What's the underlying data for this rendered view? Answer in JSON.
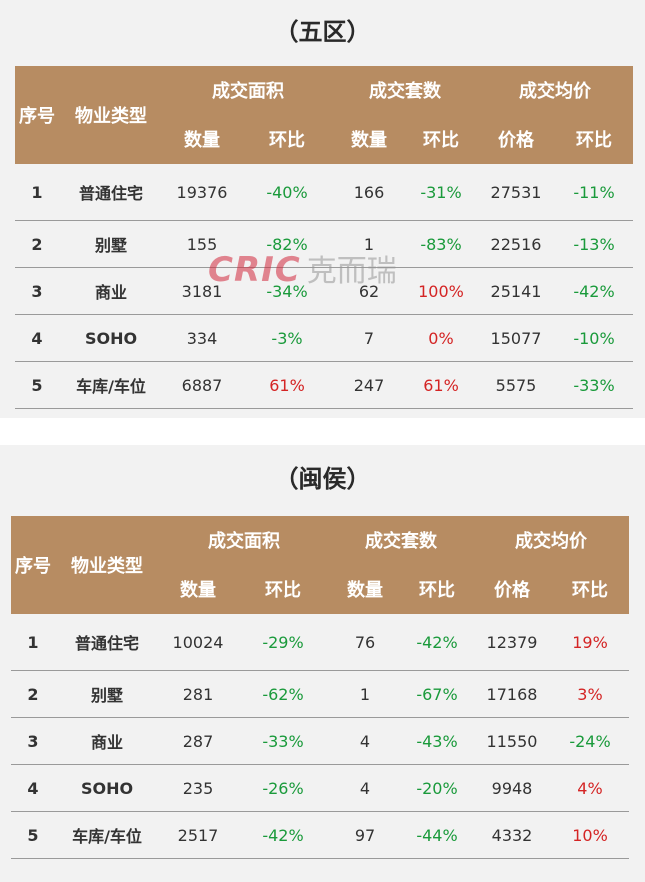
{
  "columns": {
    "seq": "序号",
    "type": "物业类型",
    "area": "成交面积",
    "sets": "成交套数",
    "price": "成交均价",
    "qty": "数量",
    "mom": "环比",
    "price_sub": "价格"
  },
  "tables": [
    {
      "title": "（五区）",
      "rows": [
        {
          "idx": "1",
          "type": "普通住宅",
          "area": "19376",
          "area_mom": "-40%",
          "sets": "166",
          "sets_mom": "-31%",
          "price": "27531",
          "price_mom": "-11%"
        },
        {
          "idx": "2",
          "type": "别墅",
          "area": "155",
          "area_mom": "-82%",
          "sets": "1",
          "sets_mom": "-83%",
          "price": "22516",
          "price_mom": "-13%"
        },
        {
          "idx": "3",
          "type": "商业",
          "area": "3181",
          "area_mom": "-34%",
          "sets": "62",
          "sets_mom": "100%",
          "price": "25141",
          "price_mom": "-42%"
        },
        {
          "idx": "4",
          "type": "SOHO",
          "area": "334",
          "area_mom": "-3%",
          "sets": "7",
          "sets_mom": "0%",
          "price": "15077",
          "price_mom": "-10%"
        },
        {
          "idx": "5",
          "type": "车库/车位",
          "area": "6887",
          "area_mom": "61%",
          "sets": "247",
          "sets_mom": "61%",
          "price": "5575",
          "price_mom": "-33%"
        }
      ]
    },
    {
      "title": "（闽侯）",
      "rows": [
        {
          "idx": "1",
          "type": "普通住宅",
          "area": "10024",
          "area_mom": "-29%",
          "sets": "76",
          "sets_mom": "-42%",
          "price": "12379",
          "price_mom": "19%"
        },
        {
          "idx": "2",
          "type": "别墅",
          "area": "281",
          "area_mom": "-62%",
          "sets": "1",
          "sets_mom": "-67%",
          "price": "17168",
          "price_mom": "3%"
        },
        {
          "idx": "3",
          "type": "商业",
          "area": "287",
          "area_mom": "-33%",
          "sets": "4",
          "sets_mom": "-43%",
          "price": "11550",
          "price_mom": "-24%"
        },
        {
          "idx": "4",
          "type": "SOHO",
          "area": "235",
          "area_mom": "-26%",
          "sets": "4",
          "sets_mom": "-20%",
          "price": "9948",
          "price_mom": "4%"
        },
        {
          "idx": "5",
          "type": "车库/车位",
          "area": "2517",
          "area_mom": "-42%",
          "sets": "97",
          "sets_mom": "-44%",
          "price": "4332",
          "price_mom": "10%"
        }
      ]
    }
  ],
  "watermark": {
    "logo": "CRIC",
    "text": "克而瑞"
  },
  "colors": {
    "header_bg": "#b78c62",
    "negative": "#1a9a3b",
    "positive": "#d42424",
    "panel_bg": "#f2f2f2"
  }
}
